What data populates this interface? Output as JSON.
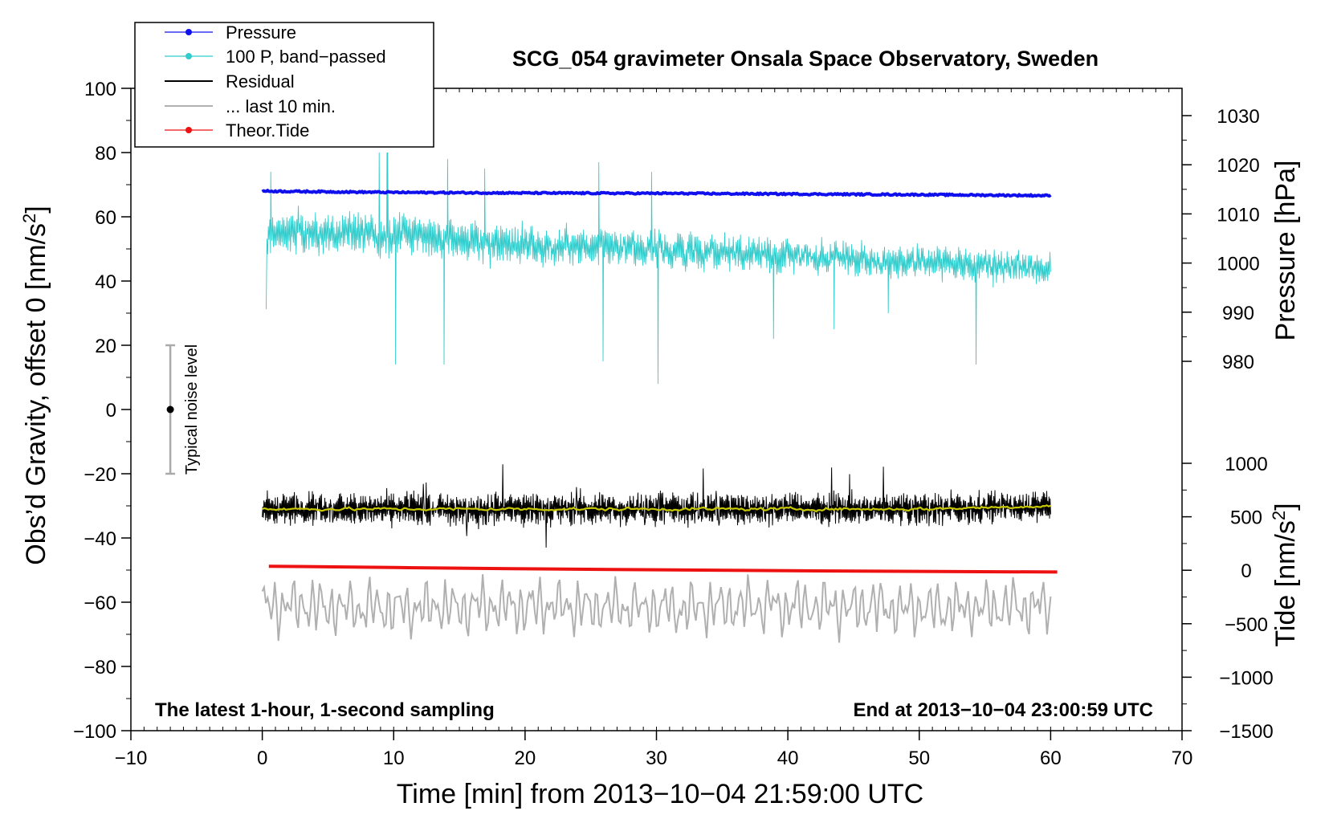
{
  "chart_data": {
    "type": "line",
    "title": "SCG_054 gravimeter Onsala Space Observatory, Sweden",
    "xlabel": "Time [min] from 2013−10−04 21:59:00 UTC",
    "ylabel_left": "Obs’d Gravity, offset 0 [nm/s",
    "ylabel_left_sup": "2",
    "ylabel_left_close": "]",
    "ylabel_right_pressure": "Pressure [hPa]",
    "ylabel_right_tide": "Tide [nm/s",
    "ylabel_right_tide_sup": "2",
    "ylabel_right_tide_close": "]",
    "xlim": [
      -10,
      70
    ],
    "ylim": [
      -100,
      100
    ],
    "pressure_axis_range": [
      980,
      1030
    ],
    "tide_axis_range": [
      -1500,
      1000
    ],
    "x_ticks": [
      -10,
      0,
      10,
      20,
      30,
      40,
      50,
      60,
      70
    ],
    "x_tick_labels": [
      "−10",
      "0",
      "10",
      "20",
      "30",
      "40",
      "50",
      "60",
      "70"
    ],
    "y_ticks": [
      100,
      80,
      60,
      40,
      20,
      0,
      -20,
      -40,
      -60,
      -80,
      -100
    ],
    "y_tick_labels": [
      "100",
      "80",
      "60",
      "40",
      "20",
      "0",
      "−20",
      "−40",
      "−60",
      "−80",
      "−100"
    ],
    "pressure_ticks": [
      1030,
      1020,
      1010,
      1000,
      990,
      980
    ],
    "pressure_tick_labels": [
      "1030",
      "1020",
      "1010",
      "1000",
      "990",
      "980"
    ],
    "tide_ticks": [
      1000,
      500,
      0,
      -500,
      -1000,
      -1500
    ],
    "tide_tick_labels": [
      "1000",
      "500",
      "0",
      "−500",
      "−1000",
      "−1500"
    ],
    "note_left": "The latest 1-hour, 1-second sampling",
    "note_right": "End at 2013−10−04 23:00:59 UTC",
    "noise_label": "Typical noise level",
    "noise_bar": {
      "x": -7,
      "center": 0,
      "half_range": 20
    },
    "legend": [
      {
        "label": "Pressure",
        "color": "#1010ee",
        "marker": true
      },
      {
        "label": "100 P, band−passed",
        "color": "#33cccc",
        "marker": true
      },
      {
        "label": "Residual",
        "color": "#000000",
        "marker": false
      },
      {
        "label": "... last 10 min.",
        "color": "#b0b0b0",
        "marker": false
      },
      {
        "label": "Theor.Tide",
        "color": "#ee1111",
        "marker": true
      }
    ],
    "series": [
      {
        "name": "Pressure",
        "color": "#1010ee",
        "x": [
          0,
          10,
          20,
          30,
          40,
          50,
          60
        ],
        "values": [
          68,
          67.6,
          67.4,
          67.3,
          67.1,
          66.9,
          66.6
        ]
      },
      {
        "name": "100 P, band−passed",
        "color": "#33cccc",
        "x": [
          0,
          10,
          20,
          30,
          40,
          50,
          60
        ],
        "values": [
          55,
          55,
          51,
          50,
          48,
          46,
          44
        ],
        "spikes": [
          [
            0.6,
            74
          ],
          [
            8.9,
            80
          ],
          [
            9.5,
            80
          ],
          [
            10.1,
            14
          ],
          [
            13.8,
            14
          ],
          [
            14.1,
            78
          ],
          [
            16.9,
            75
          ],
          [
            25.6,
            77
          ],
          [
            25.9,
            15
          ],
          [
            29.6,
            74
          ],
          [
            30.1,
            8
          ],
          [
            38.9,
            22
          ],
          [
            43.5,
            25
          ],
          [
            47.6,
            30
          ],
          [
            55.6,
            38
          ],
          [
            54.3,
            14
          ]
        ]
      },
      {
        "name": "Residual",
        "color": "#000000",
        "x": [
          0,
          10,
          20,
          30,
          40,
          50,
          60
        ],
        "values": [
          -31,
          -31,
          -31,
          -31,
          -31,
          -31,
          -30
        ]
      },
      {
        "name": "Residual smoothed",
        "color": "#c8c800",
        "x": [
          0,
          10,
          20,
          30,
          40,
          50,
          60
        ],
        "values": [
          -31,
          -31,
          -31,
          -31,
          -31,
          -31,
          -30
        ]
      },
      {
        "name": "... last 10 min.",
        "color": "#b0b0b0",
        "x": [
          0,
          10,
          20,
          30,
          40,
          50,
          60
        ],
        "values": [
          -61,
          -62,
          -61,
          -62,
          -61,
          -62,
          -61
        ]
      },
      {
        "name": "Theor.Tide",
        "color": "#ee1111",
        "x": [
          0.5,
          10,
          20,
          30,
          40,
          50,
          60.5
        ],
        "values": [
          -48.8,
          -49.2,
          -49.6,
          -49.9,
          -50.2,
          -50.4,
          -50.6
        ]
      }
    ]
  }
}
